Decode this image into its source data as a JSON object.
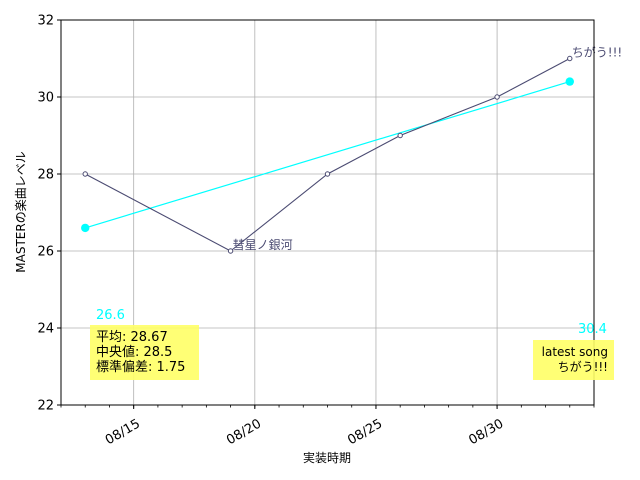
{
  "chart_data": {
    "type": "line",
    "xlabel": "実装時期",
    "ylabel": "MASTERの楽曲レベル",
    "ylim": [
      22,
      32
    ],
    "yticks": [
      22,
      24,
      26,
      28,
      30,
      32
    ],
    "xlim": [
      12.0,
      34.0
    ],
    "xticks": [
      {
        "value": 15,
        "label": "08/15"
      },
      {
        "value": 20,
        "label": "08/20"
      },
      {
        "value": 25,
        "label": "08/25"
      },
      {
        "value": 30,
        "label": "08/30"
      }
    ],
    "grid": true,
    "series": [
      {
        "name": "levels",
        "color": "#4b4b72",
        "x": [
          13,
          19,
          23,
          26,
          30,
          33
        ],
        "y": [
          28,
          26,
          28,
          29,
          30,
          31
        ],
        "point_labels": [
          {
            "index": 1,
            "text": "彗星ノ銀河"
          },
          {
            "index": 5,
            "text": "ちがう!!!"
          }
        ]
      },
      {
        "name": "trend",
        "color": "#00ffff",
        "x": [
          13,
          33
        ],
        "y": [
          26.6,
          30.4
        ]
      }
    ],
    "trend_labels": [
      "26.6",
      "30.4"
    ],
    "stats_box": {
      "lines": [
        "平均: 28.67",
        "中央値: 28.5",
        "標準偏差:  1.75"
      ],
      "background": "#ffff66"
    },
    "latest_box": {
      "lines": [
        "latest song",
        "ちがう!!!"
      ],
      "background": "#ffff66"
    }
  }
}
